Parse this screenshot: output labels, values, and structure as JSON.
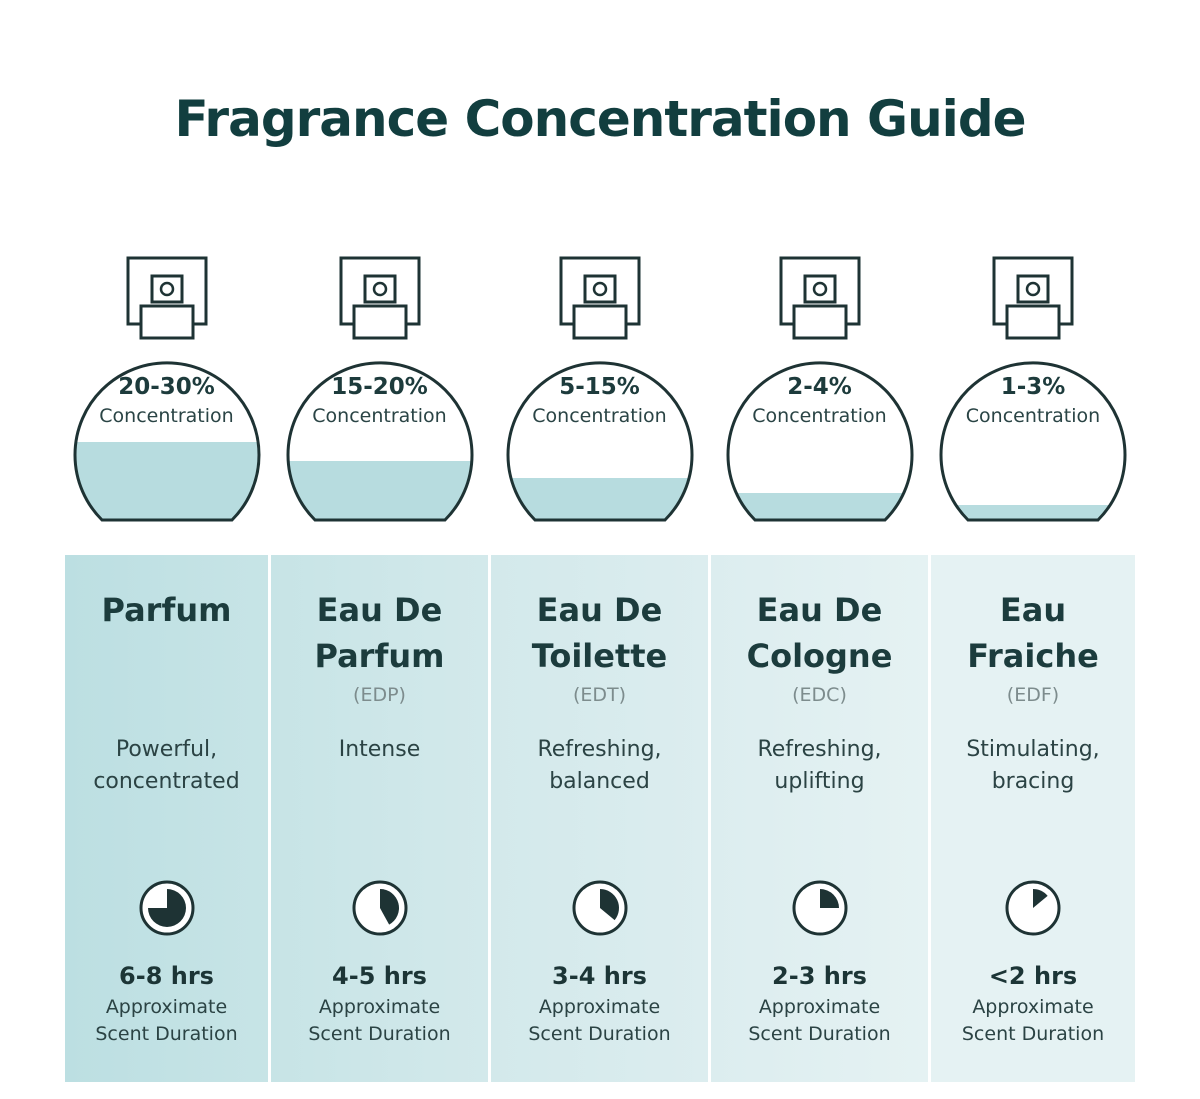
{
  "title": "Fragrance Concentration Guide",
  "columns": [
    {
      "concentration": "20-30%",
      "concentration_label": "Concentration",
      "name": [
        "Parfum"
      ],
      "abbreviation": null,
      "description": [
        "Powerful,",
        "concentrated"
      ],
      "duration": "6-8 hrs",
      "duration_label": [
        "Approximate",
        "Scent Duration"
      ]
    },
    {
      "concentration": "15-20%",
      "concentration_label": "Concentration",
      "name": [
        "Eau De",
        "Parfum"
      ],
      "abbreviation": "(EDP)",
      "description": [
        "Intense"
      ],
      "duration": "4-5 hrs",
      "duration_label": [
        "Approximate",
        "Scent Duration"
      ]
    },
    {
      "concentration": "5-15%",
      "concentration_label": "Concentration",
      "name": [
        "Eau De",
        "Toilette"
      ],
      "abbreviation": "(EDT)",
      "description": [
        "Refreshing,",
        "balanced"
      ],
      "duration": "3-4 hrs",
      "duration_label": [
        "Approximate",
        "Scent Duration"
      ]
    },
    {
      "concentration": "2-4%",
      "concentration_label": "Concentration",
      "name": [
        "Eau De",
        "Cologne"
      ],
      "abbreviation": "(EDC)",
      "description": [
        "Refreshing,",
        "uplifting"
      ],
      "duration": "2-3 hrs",
      "duration_label": [
        "Approximate",
        "Scent Duration"
      ]
    },
    {
      "concentration": "1-3%",
      "concentration_label": "Concentration",
      "name": [
        "Eau",
        "Fraiche"
      ],
      "abbreviation": "(EDF)",
      "description": [
        "Stimulating,",
        "bracing"
      ],
      "duration": "<2 hrs",
      "duration_label": [
        "Approximate",
        "Scent Duration"
      ]
    }
  ]
}
